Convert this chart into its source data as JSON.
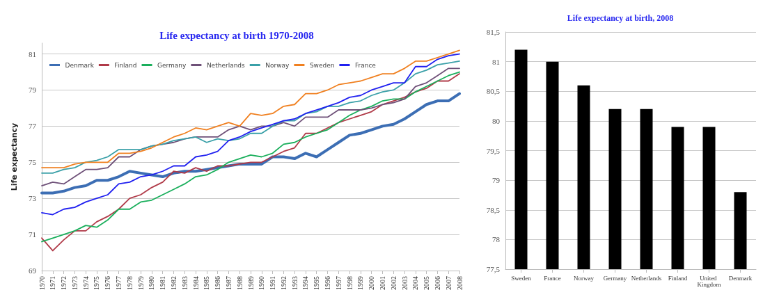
{
  "chart_data": [
    {
      "type": "line",
      "title": "Life expectancy at birth 1970-2008",
      "ylabel": "Life expectancy",
      "categories": [
        "1970",
        "1971",
        "1972",
        "1973",
        "1974",
        "1975",
        "1976",
        "1977",
        "1978",
        "1979",
        "1980",
        "1981",
        "1982",
        "1983",
        "1984",
        "1985",
        "1986",
        "1987",
        "1988",
        "1989",
        "1990",
        "1991",
        "1992",
        "1993",
        "1994",
        "1995",
        "1996",
        "1997",
        "1998",
        "1999",
        "2000",
        "2001",
        "2002",
        "2003",
        "2004",
        "2005",
        "2006",
        "2007",
        "2008"
      ],
      "series": [
        {
          "name": "Denmark",
          "color": "#3c6eb4",
          "values": [
            73.3,
            73.3,
            73.4,
            73.6,
            73.7,
            74.0,
            74.0,
            74.2,
            74.5,
            74.4,
            74.3,
            74.2,
            74.4,
            74.5,
            74.5,
            74.6,
            74.7,
            74.8,
            74.9,
            74.9,
            74.9,
            75.3,
            75.3,
            75.2,
            75.5,
            75.3,
            75.7,
            76.1,
            76.5,
            76.6,
            76.8,
            77.0,
            77.1,
            77.4,
            77.8,
            78.2,
            78.4,
            78.4,
            78.8
          ]
        },
        {
          "name": "Finland",
          "color": "#b03a48",
          "values": [
            70.8,
            70.1,
            70.7,
            71.2,
            71.2,
            71.7,
            72.0,
            72.4,
            73.0,
            73.2,
            73.6,
            73.9,
            74.5,
            74.4,
            74.7,
            74.5,
            74.8,
            74.8,
            74.9,
            75.0,
            75.0,
            75.3,
            75.6,
            75.8,
            76.6,
            76.6,
            76.9,
            77.2,
            77.4,
            77.6,
            77.8,
            78.2,
            78.4,
            78.6,
            78.9,
            79.1,
            79.5,
            79.5,
            79.9
          ]
        },
        {
          "name": "Germany",
          "color": "#1aaf5c",
          "values": [
            70.6,
            70.8,
            71.0,
            71.2,
            71.5,
            71.4,
            71.8,
            72.4,
            72.4,
            72.8,
            72.9,
            73.2,
            73.5,
            73.8,
            74.2,
            74.3,
            74.6,
            75.0,
            75.2,
            75.4,
            75.3,
            75.5,
            76.0,
            76.1,
            76.4,
            76.6,
            76.8,
            77.2,
            77.6,
            77.9,
            78.1,
            78.4,
            78.5,
            78.5,
            78.9,
            79.2,
            79.5,
            79.8,
            80.0
          ]
        },
        {
          "name": "Netherlands",
          "color": "#6e5078",
          "values": [
            73.7,
            73.9,
            73.8,
            74.2,
            74.6,
            74.6,
            74.7,
            75.3,
            75.3,
            75.7,
            75.9,
            76.0,
            76.1,
            76.3,
            76.4,
            76.4,
            76.4,
            76.8,
            77.0,
            76.8,
            77.0,
            77.0,
            77.2,
            77.0,
            77.5,
            77.5,
            77.5,
            77.9,
            77.9,
            77.9,
            78.0,
            78.2,
            78.3,
            78.5,
            79.2,
            79.4,
            79.8,
            80.2,
            80.2
          ]
        },
        {
          "name": "Norway",
          "color": "#3aa0a8",
          "values": [
            74.4,
            74.4,
            74.6,
            74.7,
            75.0,
            75.1,
            75.3,
            75.7,
            75.7,
            75.7,
            75.9,
            76.0,
            76.2,
            76.3,
            76.4,
            76.1,
            76.3,
            76.2,
            76.3,
            76.6,
            76.6,
            77.0,
            77.3,
            77.3,
            77.7,
            77.8,
            78.1,
            78.1,
            78.3,
            78.4,
            78.7,
            78.9,
            79.0,
            79.4,
            79.9,
            80.1,
            80.4,
            80.5,
            80.6
          ]
        },
        {
          "name": "Sweden",
          "color": "#f08020",
          "values": [
            74.7,
            74.7,
            74.7,
            74.9,
            75.0,
            75.0,
            75.0,
            75.5,
            75.5,
            75.6,
            75.8,
            76.1,
            76.4,
            76.6,
            76.9,
            76.8,
            77.0,
            77.2,
            77.0,
            77.7,
            77.6,
            77.7,
            78.1,
            78.2,
            78.8,
            78.8,
            79.0,
            79.3,
            79.4,
            79.5,
            79.7,
            79.9,
            79.9,
            80.2,
            80.6,
            80.6,
            80.8,
            81.0,
            81.2
          ]
        },
        {
          "name": "France",
          "color": "#2020f0",
          "values": [
            72.2,
            72.1,
            72.4,
            72.5,
            72.8,
            73.0,
            73.2,
            73.8,
            73.9,
            74.2,
            74.3,
            74.5,
            74.8,
            74.8,
            75.3,
            75.4,
            75.6,
            76.2,
            76.4,
            76.7,
            76.9,
            77.1,
            77.3,
            77.4,
            77.7,
            77.9,
            78.1,
            78.3,
            78.6,
            78.7,
            79.0,
            79.2,
            79.4,
            79.4,
            80.3,
            80.3,
            80.7,
            80.9,
            81.0
          ]
        }
      ],
      "ylim": [
        69,
        81.6
      ],
      "yticks": [
        69,
        71,
        73,
        75,
        77,
        79,
        81
      ],
      "grid": "y",
      "legend": "top",
      "marker": "none",
      "line_style": "solid"
    },
    {
      "type": "bar",
      "title": "Life expectancy at birth, 2008",
      "categories": [
        "Sweden",
        "France",
        "Norway",
        "Germany",
        "Netherlands",
        "Finland",
        "United Kingdom",
        "Denmark"
      ],
      "values": [
        81.2,
        81.0,
        80.6,
        80.2,
        80.2,
        79.9,
        79.9,
        78.8
      ],
      "color": "#000000",
      "ylim": [
        77.5,
        81.5
      ],
      "yticks": [
        {
          "value": 77.5,
          "label": "77,5"
        },
        78,
        {
          "value": 78.5,
          "label": "78,5"
        },
        79,
        {
          "value": 79.5,
          "label": "79,5"
        },
        80,
        {
          "value": 80.5,
          "label": "80,5"
        },
        81,
        {
          "value": 81.5,
          "label": "81,5"
        }
      ],
      "grid": "y"
    }
  ]
}
